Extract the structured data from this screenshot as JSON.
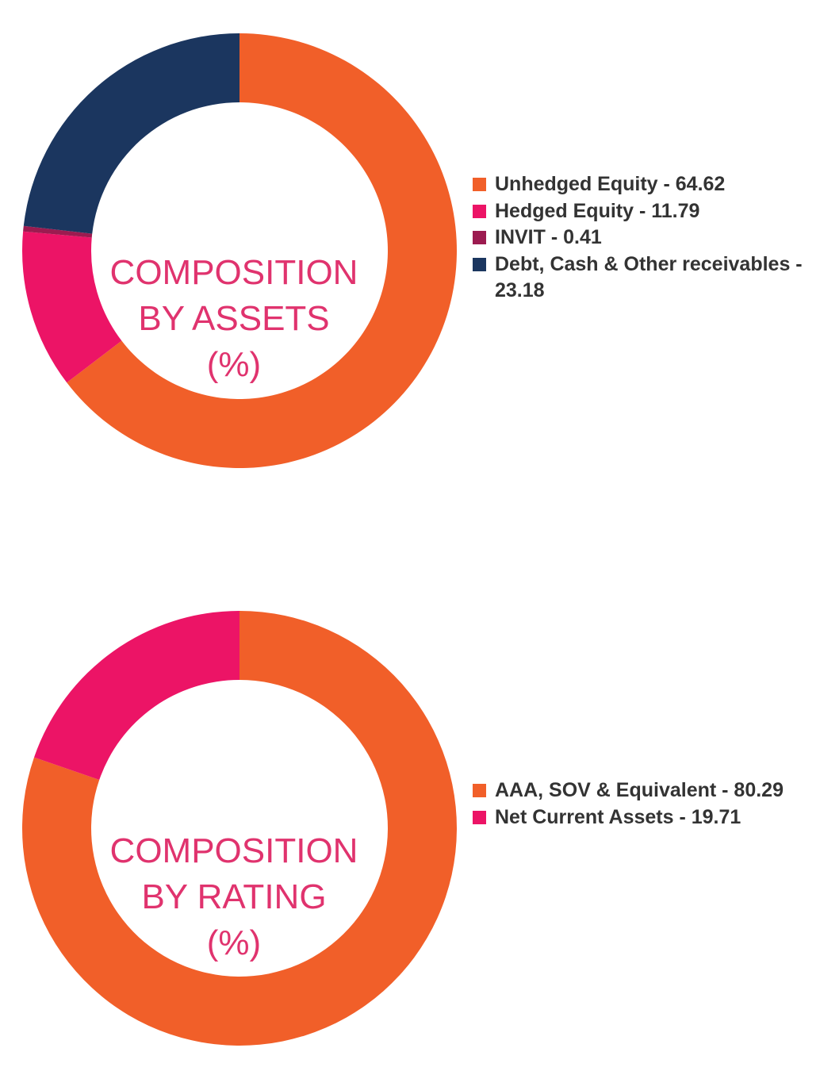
{
  "chart_data": [
    {
      "type": "pie",
      "donut": true,
      "title_lines": [
        "COMPOSITION",
        "BY ASSETS",
        "(%)"
      ],
      "slices": [
        {
          "label": "Unhedged Equity - 64.62",
          "value": 64.62,
          "color": "#f15f29"
        },
        {
          "label": "Hedged Equity - 11.79",
          "value": 11.79,
          "color": "#ec1466"
        },
        {
          "label": "INVIT - 0.41",
          "value": 0.41,
          "color": "#9c1b50"
        },
        {
          "label": "Debt, Cash & Other receivables - 23.18",
          "value": 23.18,
          "color": "#1b365f"
        }
      ],
      "legend_position": "right"
    },
    {
      "type": "pie",
      "donut": true,
      "title_lines": [
        "COMPOSITION",
        "BY RATING",
        "(%)"
      ],
      "slices": [
        {
          "label": "AAA, SOV & Equivalent - 80.29",
          "value": 80.29,
          "color": "#f15f29"
        },
        {
          "label": "Net Current Assets - 19.71",
          "value": 19.71,
          "color": "#ec1466"
        }
      ],
      "legend_position": "right"
    }
  ]
}
